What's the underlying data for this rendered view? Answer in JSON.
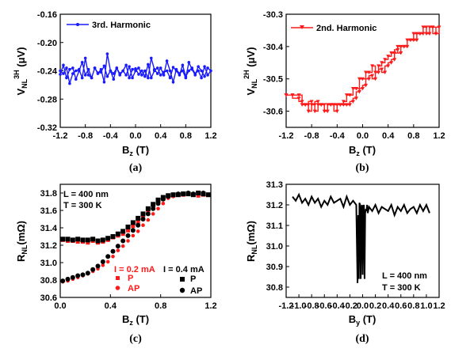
{
  "panels": [
    {
      "key": "a",
      "caption": "(a)",
      "xlabel": {
        "main": "B",
        "sub": "z",
        "tail": " (T)"
      },
      "ylabel": {
        "main": "V",
        "sub": "NL",
        "sup": "3H",
        "tail": " (μV)"
      },
      "x_ticks": [
        "-1.2",
        "-0.8",
        "-0.4",
        "0.0",
        "0.4",
        "0.8",
        "1.2"
      ],
      "y_ticks": [
        "-0.16",
        "-0.20",
        "-0.24",
        "-0.28",
        "-0.32"
      ],
      "legend": [
        "3rd. Harmonic"
      ],
      "annotations": []
    },
    {
      "key": "b",
      "caption": "(b)",
      "xlabel": {
        "main": "B",
        "sub": "z",
        "tail": " (T)"
      },
      "ylabel": {
        "main": "V",
        "sub": "NL",
        "sup": "2H",
        "tail": " (μV)"
      },
      "x_ticks": [
        "-1.2",
        "-0.8",
        "-0.4",
        "0.0",
        "0.4",
        "0.8",
        "1.2"
      ],
      "y_ticks": [
        "-30.3",
        "-30.4",
        "-30.5",
        "-30.6"
      ],
      "legend": [
        "2nd. Harmonic"
      ],
      "annotations": []
    },
    {
      "key": "c",
      "caption": "(c)",
      "xlabel": {
        "main": "B",
        "sub": "z",
        "tail": " (T)"
      },
      "ylabel": {
        "main": "R",
        "sub": "NL",
        "sup": "",
        "tail": "(mΩ)"
      },
      "x_ticks": [
        "0.0",
        "0.4",
        "0.8",
        "1.2"
      ],
      "y_ticks": [
        "31.8",
        "31.6",
        "31.4",
        "31.2",
        "31.0",
        "30.8",
        "30.6"
      ],
      "legend": [
        "I = 0.2 mA",
        "P",
        "AP",
        "I = 0.4 mA",
        "P",
        "AP"
      ],
      "annotations": [
        "L = 400 nm",
        "T = 300 K"
      ]
    },
    {
      "key": "d",
      "caption": "(d)",
      "xlabel": {
        "main": "B",
        "sub": "y",
        "tail": " (T)"
      },
      "ylabel": {
        "main": "R",
        "sub": "NL",
        "sup": "",
        "tail": "(mΩ)"
      },
      "x_ticks": [
        "-1.2",
        "-1.0",
        "-0.8",
        "-0.6",
        "-0.4",
        "-0.2",
        "0.0",
        "0.2",
        "0.4",
        "0.6",
        "0.8",
        "1.0",
        "1.2"
      ],
      "y_ticks": [
        "31.3",
        "31.2",
        "31.1",
        "31.0",
        "30.9",
        "30.8"
      ],
      "legend": [],
      "annotations": [
        "L = 400 nm",
        "T = 300 K"
      ]
    }
  ],
  "chart_data": [
    {
      "panel": "a",
      "type": "line",
      "xlim": [
        -1.2,
        1.2
      ],
      "ylim": [
        -0.32,
        -0.16
      ],
      "series": [
        {
          "name": "3rd. Harmonic",
          "color": "#1a1aff",
          "x": [
            -1.2,
            -1.15,
            -1.1,
            -1.05,
            -1.0,
            -0.95,
            -0.9,
            -0.85,
            -0.8,
            -0.75,
            -0.7,
            -0.65,
            -0.6,
            -0.55,
            -0.5,
            -0.45,
            -0.4,
            -0.35,
            -0.3,
            -0.25,
            -0.2,
            -0.15,
            -0.1,
            -0.05,
            0.0,
            0.05,
            0.1,
            0.15,
            0.2,
            0.25,
            0.3,
            0.35,
            0.4,
            0.45,
            0.5,
            0.55,
            0.6,
            0.65,
            0.7,
            0.75,
            0.8,
            0.85,
            0.9,
            0.95,
            1.0,
            1.05,
            1.1,
            1.15,
            1.2,
            1.15,
            1.1,
            1.05,
            1.0,
            0.95,
            0.9,
            0.85,
            0.8,
            0.75,
            0.7,
            0.65,
            0.6,
            0.55,
            0.5,
            0.45,
            0.4,
            0.35,
            0.3,
            0.25,
            0.2,
            0.15,
            0.1,
            0.05,
            0.0,
            -0.05,
            -0.1,
            -0.15,
            -0.2,
            -0.25,
            -0.3,
            -0.35,
            -0.4,
            -0.45,
            -0.5,
            -0.55,
            -0.6,
            -0.65,
            -0.7,
            -0.75,
            -0.8,
            -0.85,
            -0.9,
            -0.95,
            -1.0,
            -1.05,
            -1.1,
            -1.15,
            -1.2
          ],
          "y": [
            -0.245,
            -0.232,
            -0.25,
            -0.238,
            -0.236,
            -0.252,
            -0.24,
            -0.228,
            -0.246,
            -0.238,
            -0.25,
            -0.236,
            -0.243,
            -0.242,
            -0.233,
            -0.248,
            -0.24,
            -0.244,
            -0.236,
            -0.246,
            -0.24,
            -0.232,
            -0.25,
            -0.238,
            -0.237,
            -0.245,
            -0.24,
            -0.248,
            -0.231,
            -0.25,
            -0.24,
            -0.236,
            -0.246,
            -0.242,
            -0.24,
            -0.25,
            -0.235,
            -0.24,
            -0.246,
            -0.232,
            -0.248,
            -0.24,
            -0.236,
            -0.244,
            -0.24,
            -0.25,
            -0.234,
            -0.246,
            -0.24,
            -0.236,
            -0.248,
            -0.24,
            -0.234,
            -0.246,
            -0.238,
            -0.228,
            -0.25,
            -0.24,
            -0.244,
            -0.238,
            -0.256,
            -0.24,
            -0.226,
            -0.246,
            -0.236,
            -0.244,
            -0.238,
            -0.222,
            -0.25,
            -0.24,
            -0.246,
            -0.236,
            -0.24,
            -0.25,
            -0.234,
            -0.246,
            -0.24,
            -0.244,
            -0.236,
            -0.252,
            -0.24,
            -0.216,
            -0.256,
            -0.238,
            -0.244,
            -0.236,
            -0.25,
            -0.246,
            -0.222,
            -0.25,
            -0.238,
            -0.24,
            -0.244,
            -0.258,
            -0.236,
            -0.244,
            -0.24
          ]
        }
      ]
    },
    {
      "panel": "b",
      "type": "line",
      "xlim": [
        -1.2,
        1.2
      ],
      "ylim": [
        -30.65,
        -30.3
      ],
      "series": [
        {
          "name": "2nd. Harmonic",
          "color": "#ff1a1a",
          "x": [
            -1.2,
            -1.1,
            -1.0,
            -0.95,
            -0.9,
            -0.85,
            -0.8,
            -0.75,
            -0.7,
            -0.65,
            -0.6,
            -0.55,
            -0.5,
            -0.45,
            -0.4,
            -0.35,
            -0.3,
            -0.25,
            -0.2,
            -0.15,
            -0.1,
            -0.05,
            0.0,
            0.05,
            0.1,
            0.15,
            0.2,
            0.25,
            0.3,
            0.35,
            0.4,
            0.45,
            0.5,
            0.55,
            0.6,
            0.65,
            0.7,
            0.75,
            0.8,
            0.85,
            0.9,
            0.95,
            1.0,
            1.05,
            1.1,
            1.15,
            1.2,
            1.15,
            1.1,
            1.05,
            1.0,
            0.95,
            0.9,
            0.85,
            0.8,
            0.75,
            0.7,
            0.65,
            0.6,
            0.55,
            0.5,
            0.45,
            0.4,
            0.35,
            0.3,
            0.25,
            0.2,
            0.15,
            0.1,
            0.05,
            0.0,
            -0.05,
            -0.1,
            -0.15,
            -0.2,
            -0.25,
            -0.3,
            -0.35,
            -0.4,
            -0.45,
            -0.5,
            -0.55,
            -0.6,
            -0.65,
            -0.7,
            -0.75,
            -0.8,
            -0.85,
            -0.9,
            -0.95,
            -1.0,
            -1.1,
            -1.2
          ],
          "y": [
            -30.55,
            -30.55,
            -30.55,
            -30.58,
            -30.58,
            -30.6,
            -30.58,
            -30.6,
            -30.58,
            -30.58,
            -30.6,
            -30.58,
            -30.58,
            -30.58,
            -30.58,
            -30.58,
            -30.57,
            -30.55,
            -30.55,
            -30.53,
            -30.53,
            -30.5,
            -30.5,
            -30.48,
            -30.48,
            -30.46,
            -30.48,
            -30.46,
            -30.45,
            -30.44,
            -30.43,
            -30.42,
            -30.42,
            -30.4,
            -30.4,
            -30.4,
            -30.38,
            -30.38,
            -30.36,
            -30.36,
            -30.36,
            -30.34,
            -30.36,
            -30.34,
            -30.34,
            -30.36,
            -30.34,
            -30.36,
            -30.34,
            -30.36,
            -30.34,
            -30.36,
            -30.36,
            -30.38,
            -30.38,
            -30.38,
            -30.4,
            -30.4,
            -30.42,
            -30.41,
            -30.44,
            -30.45,
            -30.46,
            -30.48,
            -30.47,
            -30.48,
            -30.5,
            -30.49,
            -30.5,
            -30.52,
            -30.53,
            -30.54,
            -30.56,
            -30.57,
            -30.58,
            -30.58,
            -30.58,
            -30.58,
            -30.6,
            -30.58,
            -30.58,
            -30.6,
            -30.58,
            -30.58,
            -30.57,
            -30.58,
            -30.57,
            -30.58,
            -30.58,
            -30.57,
            -30.56,
            -30.55,
            -30.55
          ]
        }
      ]
    },
    {
      "panel": "c",
      "type": "scatter",
      "xlim": [
        0.0,
        1.2
      ],
      "ylim": [
        30.6,
        31.9
      ],
      "series": [
        {
          "name": "P",
          "group": "I = 0.2 mA",
          "marker": "square",
          "color": "#ff1a1a",
          "x": [
            0.02,
            0.06,
            0.1,
            0.14,
            0.18,
            0.22,
            0.26,
            0.3,
            0.34,
            0.38,
            0.42,
            0.46,
            0.5,
            0.54,
            0.58,
            0.62,
            0.66,
            0.7,
            0.74,
            0.78,
            0.82,
            0.86,
            0.9,
            0.94,
            0.98,
            1.02,
            1.06,
            1.1,
            1.14,
            1.18
          ],
          "y": [
            31.26,
            31.25,
            31.25,
            31.24,
            31.24,
            31.23,
            31.25,
            31.23,
            31.24,
            31.26,
            31.29,
            31.31,
            31.33,
            31.37,
            31.42,
            31.47,
            31.53,
            31.58,
            31.63,
            31.69,
            31.73,
            31.76,
            31.77,
            31.78,
            31.78,
            31.79,
            31.78,
            31.77,
            31.78,
            31.78
          ]
        },
        {
          "name": "AP",
          "group": "I = 0.2 mA",
          "marker": "circle",
          "color": "#ff1a1a",
          "x": [
            0.02,
            0.06,
            0.1,
            0.14,
            0.18,
            0.22,
            0.26,
            0.3,
            0.34,
            0.38,
            0.42,
            0.46,
            0.5,
            0.54,
            0.58,
            0.62,
            0.66,
            0.7,
            0.74,
            0.78,
            0.82,
            0.86,
            0.9,
            0.94,
            0.98,
            1.02,
            1.06,
            1.1,
            1.14
          ],
          "y": [
            30.78,
            30.79,
            30.81,
            30.83,
            30.85,
            30.87,
            30.9,
            30.93,
            30.97,
            31.01,
            31.07,
            31.14,
            31.19,
            31.25,
            31.31,
            31.36,
            31.43,
            31.49,
            31.56,
            31.62,
            31.68,
            31.74,
            31.76,
            31.78,
            31.79,
            31.8,
            31.78,
            31.79,
            31.79
          ]
        },
        {
          "name": "P",
          "group": "I = 0.4 mA",
          "marker": "square",
          "color": "#000000",
          "x": [
            0.02,
            0.06,
            0.1,
            0.14,
            0.18,
            0.22,
            0.26,
            0.3,
            0.34,
            0.38,
            0.42,
            0.46,
            0.5,
            0.54,
            0.58,
            0.62,
            0.66,
            0.7,
            0.74,
            0.78,
            0.82,
            0.86,
            0.9,
            0.94,
            0.98,
            1.02,
            1.06,
            1.1,
            1.14,
            1.18
          ],
          "y": [
            31.27,
            31.27,
            31.26,
            31.27,
            31.26,
            31.26,
            31.27,
            31.25,
            31.26,
            31.28,
            31.3,
            31.33,
            31.36,
            31.41,
            31.46,
            31.51,
            31.56,
            31.62,
            31.67,
            31.72,
            31.75,
            31.77,
            31.78,
            31.78,
            31.79,
            31.79,
            31.78,
            31.8,
            31.79,
            31.78
          ]
        },
        {
          "name": "AP",
          "group": "I = 0.4 mA",
          "marker": "circle",
          "color": "#000000",
          "x": [
            0.02,
            0.06,
            0.1,
            0.14,
            0.18,
            0.22,
            0.26,
            0.3,
            0.34,
            0.38,
            0.42,
            0.46,
            0.5,
            0.54,
            0.58,
            0.62,
            0.66,
            0.7,
            0.74,
            0.78,
            0.82,
            0.86,
            0.9,
            0.94,
            0.98,
            1.02,
            1.06,
            1.1,
            1.14
          ],
          "y": [
            30.79,
            30.81,
            30.83,
            30.85,
            30.86,
            30.88,
            30.92,
            30.96,
            31.01,
            31.07,
            31.13,
            31.19,
            31.25,
            31.31,
            31.37,
            31.43,
            31.5,
            31.56,
            31.62,
            31.68,
            31.73,
            31.76,
            31.78,
            31.79,
            31.79,
            31.8,
            31.79,
            31.8,
            31.8
          ]
        }
      ]
    },
    {
      "panel": "d",
      "type": "line",
      "xlim": [
        -1.2,
        1.2
      ],
      "ylim": [
        30.75,
        31.3
      ],
      "series": [
        {
          "name": "",
          "color": "#000000",
          "x": [
            -1.1,
            -1.05,
            -1.0,
            -0.95,
            -0.9,
            -0.85,
            -0.8,
            -0.75,
            -0.7,
            -0.65,
            -0.6,
            -0.55,
            -0.5,
            -0.45,
            -0.4,
            -0.35,
            -0.3,
            -0.25,
            -0.2,
            -0.15,
            -0.1,
            -0.08,
            -0.07,
            -0.06,
            -0.05,
            -0.04,
            -0.03,
            -0.02,
            -0.01,
            0.0,
            0.01,
            0.02,
            0.03,
            0.04,
            0.05,
            0.06,
            0.07,
            0.08,
            0.1,
            0.15,
            0.2,
            0.25,
            0.3,
            0.35,
            0.4,
            0.45,
            0.5,
            0.55,
            0.6,
            0.65,
            0.7,
            0.75,
            0.8,
            0.85,
            0.9,
            0.95,
            1.0,
            1.05
          ],
          "y": [
            31.24,
            31.22,
            31.25,
            31.21,
            31.23,
            31.2,
            31.24,
            31.21,
            31.23,
            31.19,
            31.22,
            31.2,
            31.24,
            31.21,
            31.22,
            31.23,
            31.19,
            31.24,
            31.2,
            31.22,
            31.2,
            30.82,
            31.15,
            30.84,
            31.21,
            31.2,
            30.84,
            31.18,
            31.2,
            30.86,
            31.19,
            31.2,
            30.84,
            31.16,
            31.18,
            31.17,
            31.2,
            31.16,
            31.19,
            31.17,
            31.2,
            31.16,
            31.19,
            31.18,
            31.17,
            31.2,
            31.15,
            31.19,
            31.17,
            31.2,
            31.16,
            31.18,
            31.19,
            31.16,
            31.2,
            31.17,
            31.2,
            31.16
          ]
        }
      ]
    }
  ]
}
